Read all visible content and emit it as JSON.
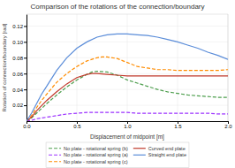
{
  "chart_data": {
    "type": "line",
    "title": "Comparison of the rotations of the connection/boundary",
    "x_label": "Displacement of midpoint [m]",
    "y_label": "Rotation of connection/boundary [rad]",
    "xlim": [
      0,
      2
    ],
    "ylim": [
      0,
      0.135
    ],
    "xticks": [
      {
        "value": 0,
        "label": "0.0"
      },
      0.5,
      {
        "value": 1,
        "label": "1.0"
      },
      1.5,
      {
        "value": 2,
        "label": "2.0"
      }
    ],
    "yticks": [
      0.02,
      0.04,
      0.06,
      0.08,
      {
        "value": 0.1,
        "label": "0.10"
      },
      0.12
    ],
    "grid": true,
    "legend": "bottom",
    "series": [
      {
        "name": "No plate - rotational spring (b)",
        "color": "#4d9e4d",
        "line_style": "dashed",
        "x": [
          0,
          0.05,
          0.1,
          0.15,
          0.2,
          0.3,
          0.4,
          0.5,
          0.6,
          0.65,
          0.7,
          0.8,
          0.9,
          1.0,
          1.1,
          1.2,
          1.3,
          1.4,
          1.5,
          1.6,
          1.7,
          1.8,
          1.9,
          2.0
        ],
        "values": [
          0,
          0.004,
          0.01,
          0.016,
          0.022,
          0.033,
          0.043,
          0.052,
          0.059,
          0.062,
          0.063,
          0.062,
          0.058,
          0.052,
          0.048,
          0.044,
          0.04,
          0.037,
          0.035,
          0.033,
          0.032,
          0.031,
          0.03,
          0.03
        ]
      },
      {
        "name": "No plate - rotational spring (a)",
        "color": "#9b30ff",
        "line_style": "dashed",
        "x": [
          0,
          0.05,
          0.1,
          0.2,
          0.3,
          0.4,
          0.5,
          0.6,
          0.7,
          0.8,
          0.9,
          1.0,
          1.1,
          1.2,
          1.3,
          1.4,
          1.5,
          1.6,
          1.7,
          1.8,
          1.9,
          2.0
        ],
        "values": [
          0,
          0.001,
          0.003,
          0.005,
          0.007,
          0.009,
          0.01,
          0.011,
          0.011,
          0.011,
          0.011,
          0.011,
          0.01,
          0.01,
          0.01,
          0.01,
          0.01,
          0.01,
          0.01,
          0.01,
          0.009,
          0.009
        ]
      },
      {
        "name": "No plate - rotational spring (c)",
        "color": "#ff8c00",
        "line_style": "dashed",
        "x": [
          0,
          0.05,
          0.1,
          0.15,
          0.2,
          0.3,
          0.4,
          0.5,
          0.6,
          0.7,
          0.75,
          0.8,
          0.9,
          1.0,
          1.1,
          1.2,
          1.3,
          1.4,
          1.5,
          1.6,
          1.7,
          1.8,
          1.9,
          2.0
        ],
        "values": [
          0,
          0.007,
          0.017,
          0.026,
          0.034,
          0.049,
          0.06,
          0.069,
          0.076,
          0.08,
          0.081,
          0.081,
          0.079,
          0.074,
          0.069,
          0.067,
          0.065,
          0.065,
          0.064,
          0.064,
          0.064,
          0.064,
          0.064,
          0.065
        ]
      },
      {
        "name": "Curved end plate",
        "color": "#c0392b",
        "line_style": "solid",
        "x": [
          0,
          0.05,
          0.1,
          0.2,
          0.3,
          0.4,
          0.5,
          0.6,
          0.65,
          0.7,
          0.8,
          0.9,
          1.0,
          1.1,
          1.2,
          1.3,
          1.4,
          1.5,
          1.6,
          1.7,
          1.8,
          1.9,
          2.0
        ],
        "values": [
          0,
          0.005,
          0.013,
          0.026,
          0.037,
          0.047,
          0.055,
          0.059,
          0.06,
          0.06,
          0.059,
          0.058,
          0.057,
          0.057,
          0.057,
          0.057,
          0.057,
          0.057,
          0.057,
          0.057,
          0.057,
          0.057,
          0.057
        ]
      },
      {
        "name": "Straight end plate",
        "color": "#5b8dd9",
        "line_style": "solid",
        "x": [
          0,
          0.05,
          0.1,
          0.15,
          0.2,
          0.3,
          0.4,
          0.5,
          0.6,
          0.7,
          0.8,
          0.9,
          1.0,
          1.1,
          1.2,
          1.3,
          1.4,
          1.5,
          1.6,
          1.7,
          1.8,
          1.9,
          2.0
        ],
        "values": [
          0,
          0.01,
          0.022,
          0.034,
          0.044,
          0.064,
          0.08,
          0.092,
          0.1,
          0.106,
          0.109,
          0.11,
          0.11,
          0.109,
          0.108,
          0.106,
          0.103,
          0.1,
          0.096,
          0.092,
          0.087,
          0.083,
          0.078
        ]
      }
    ]
  }
}
